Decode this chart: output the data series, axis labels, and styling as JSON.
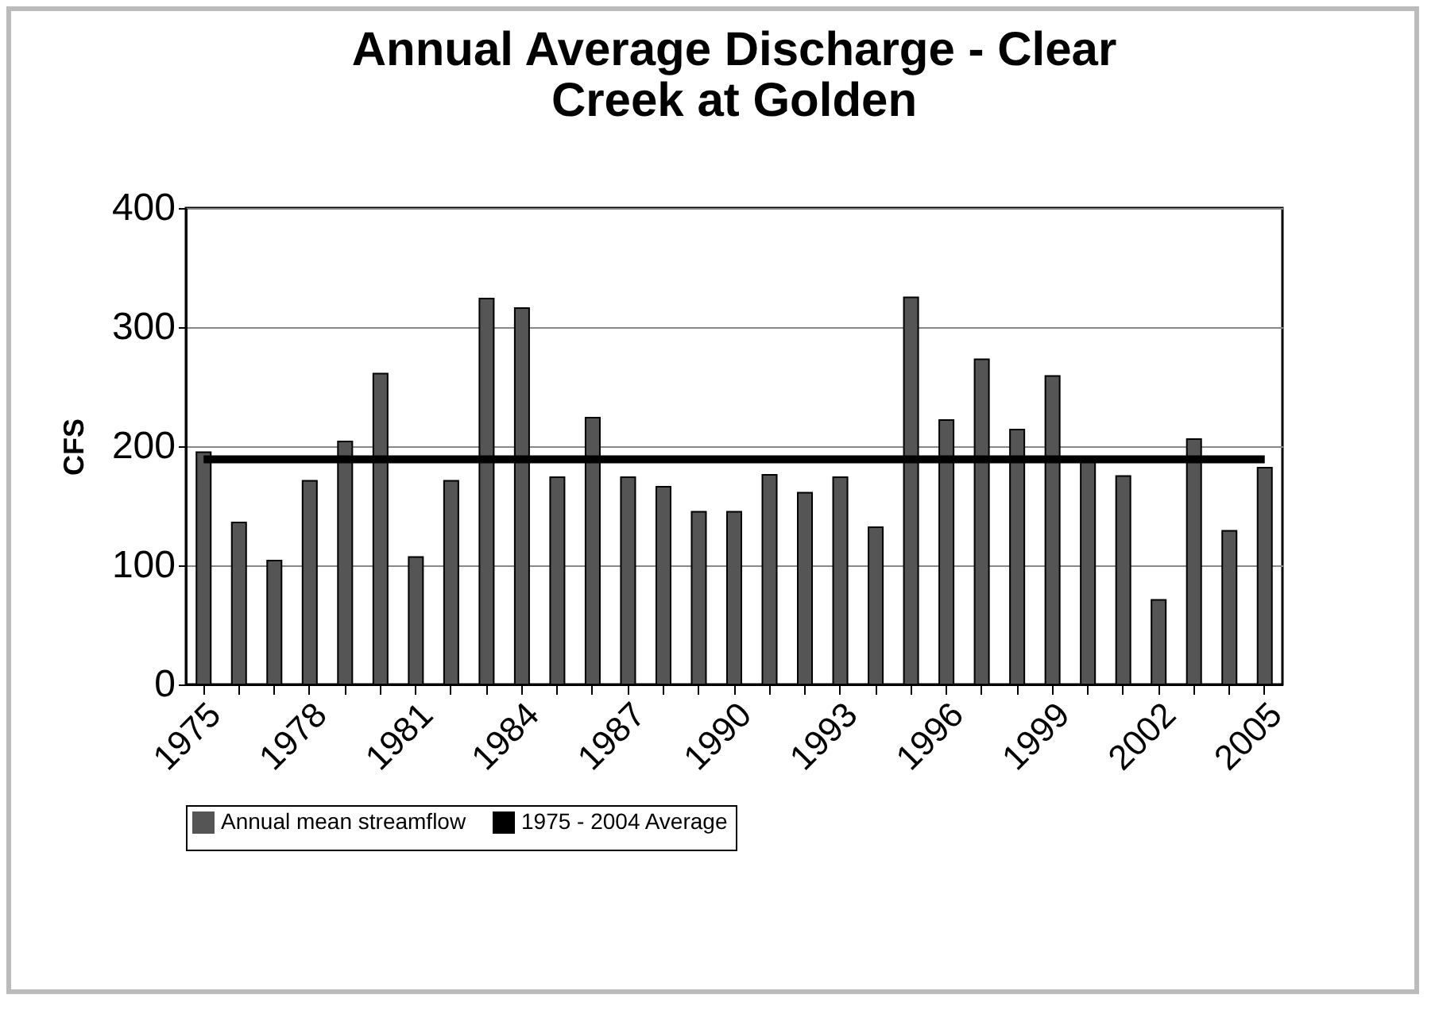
{
  "chart_data": {
    "type": "bar",
    "title": "Annual Average Discharge - Clear Creek at Golden",
    "ylabel": "CFS",
    "categories": [
      "1975",
      null,
      null,
      "1978",
      null,
      null,
      "1981",
      null,
      null,
      "1984",
      null,
      null,
      "1987",
      null,
      null,
      "1990",
      null,
      null,
      "1993",
      null,
      null,
      "1996",
      null,
      null,
      "1999",
      null,
      null,
      "2002",
      null,
      null,
      "2005"
    ],
    "series": [
      {
        "name": "Annual mean streamflow",
        "color": "#555555",
        "values": [
          195,
          136,
          104,
          171,
          204,
          261,
          107,
          171,
          324,
          316,
          174,
          224,
          174,
          166,
          145,
          145,
          176,
          161,
          174,
          132,
          325,
          222,
          273,
          214,
          259,
          189,
          175,
          71,
          206,
          129,
          182
        ]
      },
      {
        "name": "1975 - 2004 Average",
        "type": "line",
        "color": "#000000",
        "values": [
          189,
          189,
          189,
          189,
          189,
          189,
          189,
          189,
          189,
          189,
          189,
          189,
          189,
          189,
          189,
          189,
          189,
          189,
          189,
          189,
          189,
          189,
          189,
          189,
          189,
          189,
          189,
          189,
          189,
          189,
          189
        ]
      }
    ],
    "ylim": [
      0,
      400
    ],
    "yticks": [
      0,
      100,
      200,
      300,
      400
    ],
    "grid": "y",
    "legend": "bottom",
    "marker": "none"
  }
}
